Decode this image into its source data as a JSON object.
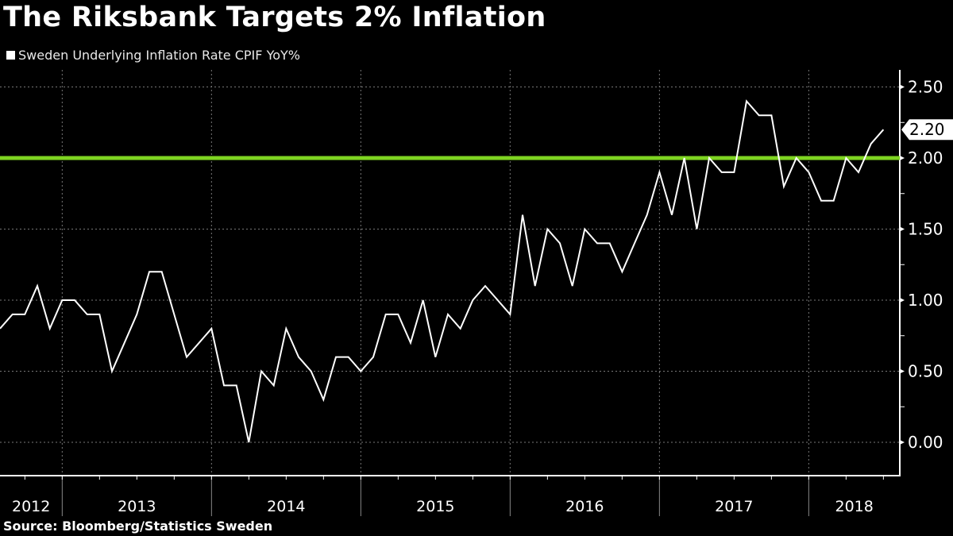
{
  "header": {
    "title": "The Riksbank Targets 2% Inflation",
    "legend_label": "Sweden Underlying Inflation Rate CPIF YoY%"
  },
  "footer": {
    "source": "Source: Bloomberg/Statistics Sweden"
  },
  "colors": {
    "background": "#000000",
    "series": "#ffffff",
    "target_line": "#7ed321"
  },
  "chart_data": {
    "type": "line",
    "title": "The Riksbank Targets 2% Inflation",
    "xlabel": "",
    "ylabel": "",
    "ylim": [
      -0.2,
      2.6
    ],
    "y_ticks": [
      "0.00",
      "0.50",
      "1.00",
      "1.50",
      "2.00",
      "2.50"
    ],
    "x_tick_labels": [
      "2012",
      "2013",
      "2014",
      "2015",
      "2016",
      "2017",
      "2018"
    ],
    "grid": true,
    "legend_position": "top-left",
    "y_axis_side": "right",
    "last_value_label": "2.20",
    "reference_lines": [
      {
        "name": "Riksbank inflation target",
        "y": 2.0,
        "color": "#7ed321"
      }
    ],
    "series": [
      {
        "name": "Sweden Underlying Inflation Rate CPIF YoY%",
        "start": "2012-08",
        "frequency": "monthly",
        "x": [
          "2012-08",
          "2012-09",
          "2012-10",
          "2012-11",
          "2012-12",
          "2013-01",
          "2013-02",
          "2013-03",
          "2013-04",
          "2013-05",
          "2013-06",
          "2013-07",
          "2013-08",
          "2013-09",
          "2013-10",
          "2013-11",
          "2013-12",
          "2014-01",
          "2014-02",
          "2014-03",
          "2014-04",
          "2014-05",
          "2014-06",
          "2014-07",
          "2014-08",
          "2014-09",
          "2014-10",
          "2014-11",
          "2014-12",
          "2015-01",
          "2015-02",
          "2015-03",
          "2015-04",
          "2015-05",
          "2015-06",
          "2015-07",
          "2015-08",
          "2015-09",
          "2015-10",
          "2015-11",
          "2015-12",
          "2016-01",
          "2016-02",
          "2016-03",
          "2016-04",
          "2016-05",
          "2016-06",
          "2016-07",
          "2016-08",
          "2016-09",
          "2016-10",
          "2016-11",
          "2016-12",
          "2017-01",
          "2017-02",
          "2017-03",
          "2017-04",
          "2017-05",
          "2017-06",
          "2017-07",
          "2017-08",
          "2017-09",
          "2017-10",
          "2017-11",
          "2017-12",
          "2018-01",
          "2018-02",
          "2018-03",
          "2018-04",
          "2018-05",
          "2018-06",
          "2018-07"
        ],
        "values": [
          0.8,
          0.9,
          0.9,
          1.1,
          0.8,
          1.0,
          1.0,
          0.9,
          0.9,
          0.5,
          0.7,
          0.9,
          1.2,
          1.2,
          0.9,
          0.6,
          0.7,
          0.8,
          0.4,
          0.4,
          0.0,
          0.5,
          0.4,
          0.8,
          0.6,
          0.5,
          0.3,
          0.6,
          0.6,
          0.5,
          0.6,
          0.9,
          0.9,
          0.7,
          1.0,
          0.6,
          0.9,
          0.8,
          1.0,
          1.1,
          1.0,
          0.9,
          1.6,
          1.1,
          1.5,
          1.4,
          1.1,
          1.5,
          1.4,
          1.4,
          1.2,
          1.4,
          1.6,
          1.9,
          1.6,
          2.0,
          1.5,
          2.0,
          1.9,
          1.9,
          2.4,
          2.3,
          2.3,
          1.8,
          2.0,
          1.9,
          1.7,
          1.7,
          2.0,
          1.9,
          2.1,
          2.2
        ]
      }
    ]
  }
}
